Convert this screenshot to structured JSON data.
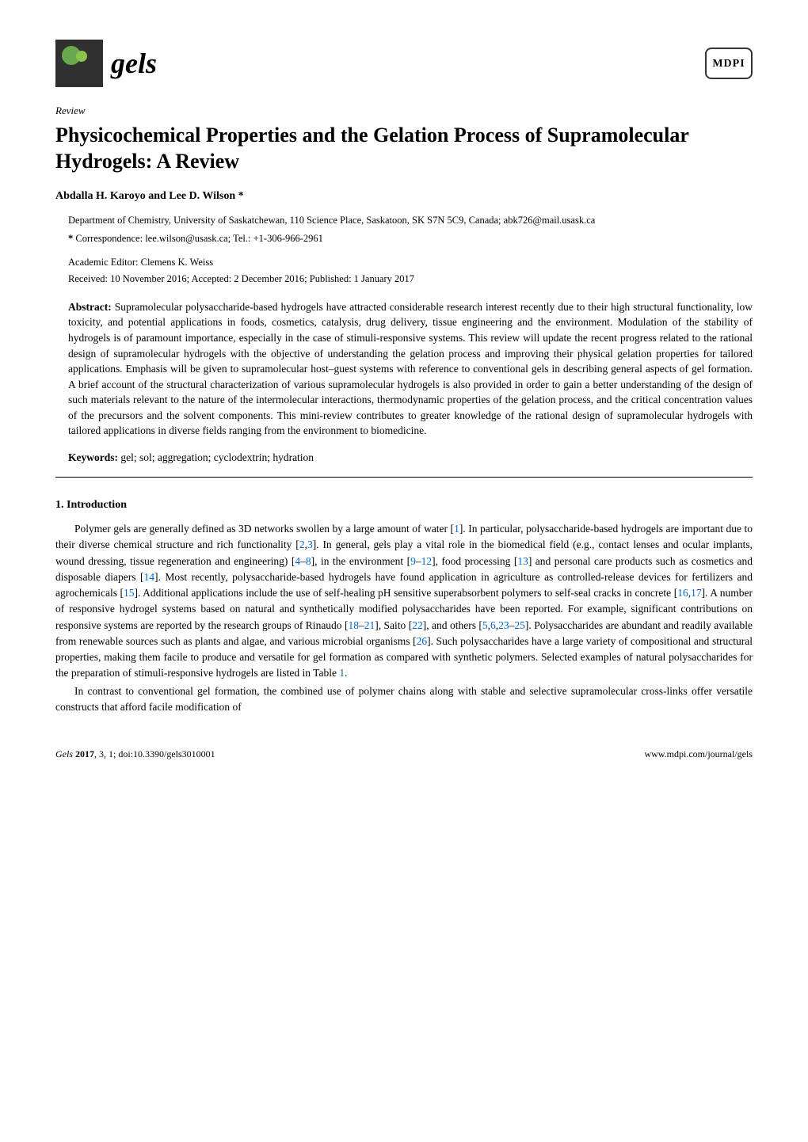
{
  "header": {
    "journal_name": "gels",
    "publisher_logo_text": "MDPI"
  },
  "article": {
    "type": "Review",
    "title": "Physicochemical Properties and the Gelation Process of Supramolecular Hydrogels: A Review",
    "authors": "Abdalla H. Karoyo and Lee D. Wilson *",
    "affiliation": "Department of Chemistry, University of Saskatchewan, 110 Science Place, Saskatoon, SK S7N 5C9, Canada; abk726@mail.usask.ca",
    "correspondence_label": "*",
    "correspondence": "Correspondence: lee.wilson@usask.ca; Tel.: +1-306-966-2961",
    "editor": "Academic Editor: Clemens K. Weiss",
    "dates": "Received: 10 November 2016; Accepted: 2 December 2016; Published: 1 January 2017"
  },
  "abstract": {
    "label": "Abstract:",
    "text": " Supramolecular polysaccharide-based hydrogels have attracted considerable research interest recently due to their high structural functionality, low toxicity, and potential applications in foods, cosmetics, catalysis, drug delivery, tissue engineering and the environment. Modulation of the stability of hydrogels is of paramount importance, especially in the case of stimuli-responsive systems. This review will update the recent progress related to the rational design of supramolecular hydrogels with the objective of understanding the gelation process and improving their physical gelation properties for tailored applications. Emphasis will be given to supramolecular host–guest systems with reference to conventional gels in describing general aspects of gel formation. A brief account of the structural characterization of various supramolecular hydrogels is also provided in order to gain a better understanding of the design of such materials relevant to the nature of the intermolecular interactions, thermodynamic properties of the gelation process, and the critical concentration values of the precursors and the solvent components. This mini-review contributes to greater knowledge of the rational design of supramolecular hydrogels with tailored applications in diverse fields ranging from the environment to biomedicine."
  },
  "keywords": {
    "label": "Keywords:",
    "text": " gel; sol; aggregation; cyclodextrin; hydration"
  },
  "section1": {
    "heading": "1. Introduction",
    "para1_part1": "Polymer gels are generally defined as 3D networks swollen by a large amount of water [",
    "ref1": "1",
    "para1_part2": "]. In particular, polysaccharide-based hydrogels are important due to their diverse chemical structure and rich functionality [",
    "ref2": "2",
    "ref3": "3",
    "para1_part3": "]. In general, gels play a vital role in the biomedical field (e.g., contact lenses and ocular implants, wound dressing, tissue regeneration and engineering) [",
    "ref4": "4",
    "ref8": "8",
    "para1_part4": "], in the environment [",
    "ref9": "9",
    "ref12": "12",
    "para1_part5": "], food processing [",
    "ref13": "13",
    "para1_part6": "] and personal care products such as cosmetics and disposable diapers [",
    "ref14": "14",
    "para1_part7": "]. Most recently, polysaccharide-based hydrogels have found application in agriculture as controlled-release devices for fertilizers and agrochemicals [",
    "ref15": "15",
    "para1_part8": "]. Additional applications include the use of self-healing pH sensitive superabsorbent polymers to self-seal cracks in concrete [",
    "ref16": "16",
    "ref17": "17",
    "para1_part9": "]. A number of responsive hydrogel systems based on natural and synthetically modified polysaccharides have been reported. For example, significant contributions on responsive systems are reported by the research groups of Rinaudo [",
    "ref18": "18",
    "ref21": "21",
    "para1_part10": "], Saito [",
    "ref22": "22",
    "para1_part11": "], and others [",
    "ref5": "5",
    "ref6": "6",
    "ref23": "23",
    "ref25": "25",
    "para1_part12": "]. Polysaccharides are abundant and readily available from renewable sources such as plants and algae, and various microbial organisms [",
    "ref26": "26",
    "para1_part13": "]. Such polysaccharides have a large variety of compositional and structural properties, making them facile to produce and versatile for gel formation as compared with synthetic polymers. Selected examples of natural polysaccharides for the preparation of stimuli-responsive hydrogels are listed in Table ",
    "tableref1": "1",
    "para1_part14": ".",
    "para2": "In contrast to conventional gel formation, the combined use of polymer chains along with stable and selective supramolecular cross-links offer versatile constructs that afford facile modification of"
  },
  "footer": {
    "citation_prefix": "Gels ",
    "citation_year": "2017",
    "citation_rest": ", 3, 1; doi:10.3390/gels3010001",
    "url": "www.mdpi.com/journal/gels"
  },
  "colors": {
    "link_color": "#0066cc",
    "text_color": "#000000",
    "background": "#ffffff"
  }
}
